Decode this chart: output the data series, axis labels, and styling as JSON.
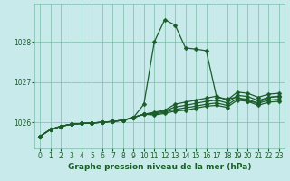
{
  "title": "Graphe pression niveau de la mer (hPa)",
  "background_color": "#c8eaea",
  "grid_color": "#7abcaa",
  "line_color": "#1a5c2a",
  "xlim": [
    -0.5,
    23.5
  ],
  "ylim": [
    1025.35,
    1028.95
  ],
  "yticks": [
    1026,
    1027,
    1028
  ],
  "xticks": [
    0,
    1,
    2,
    3,
    4,
    5,
    6,
    7,
    8,
    9,
    10,
    11,
    12,
    13,
    14,
    15,
    16,
    17,
    18,
    19,
    20,
    21,
    22,
    23
  ],
  "series": [
    [
      1025.65,
      1025.82,
      1025.9,
      1025.95,
      1025.97,
      1025.98,
      1026.0,
      1026.02,
      1026.05,
      1026.12,
      1026.45,
      1028.0,
      1028.55,
      1028.42,
      1027.85,
      1027.82,
      1027.78,
      1026.62,
      1026.58,
      1026.62,
      1026.52,
      1026.48,
      1026.62,
      1026.65
    ],
    [
      1025.65,
      1025.82,
      1025.9,
      1025.95,
      1025.97,
      1025.98,
      1026.0,
      1026.02,
      1026.05,
      1026.12,
      1026.2,
      1026.25,
      1026.3,
      1026.45,
      1026.5,
      1026.55,
      1026.6,
      1026.65,
      1026.55,
      1026.75,
      1026.72,
      1026.62,
      1026.7,
      1026.72
    ],
    [
      1025.65,
      1025.82,
      1025.9,
      1025.95,
      1025.97,
      1025.98,
      1026.0,
      1026.02,
      1026.05,
      1026.12,
      1026.2,
      1026.22,
      1026.28,
      1026.38,
      1026.42,
      1026.47,
      1026.52,
      1026.55,
      1026.48,
      1026.67,
      1026.64,
      1026.54,
      1026.62,
      1026.64
    ],
    [
      1025.65,
      1025.82,
      1025.9,
      1025.95,
      1025.97,
      1025.98,
      1026.0,
      1026.02,
      1026.05,
      1026.12,
      1026.2,
      1026.2,
      1026.25,
      1026.32,
      1026.36,
      1026.4,
      1026.45,
      1026.48,
      1026.42,
      1026.6,
      1026.57,
      1026.47,
      1026.55,
      1026.57
    ],
    [
      1025.65,
      1025.82,
      1025.9,
      1025.95,
      1025.97,
      1025.98,
      1026.0,
      1026.02,
      1026.05,
      1026.12,
      1026.2,
      1026.18,
      1026.22,
      1026.28,
      1026.3,
      1026.35,
      1026.4,
      1026.42,
      1026.37,
      1026.55,
      1026.52,
      1026.42,
      1026.5,
      1026.52
    ]
  ],
  "marker": "D",
  "markersize": 2.5,
  "linewidth": 0.9,
  "tick_labelsize": 5.5,
  "xlabel_fontsize": 6.5
}
